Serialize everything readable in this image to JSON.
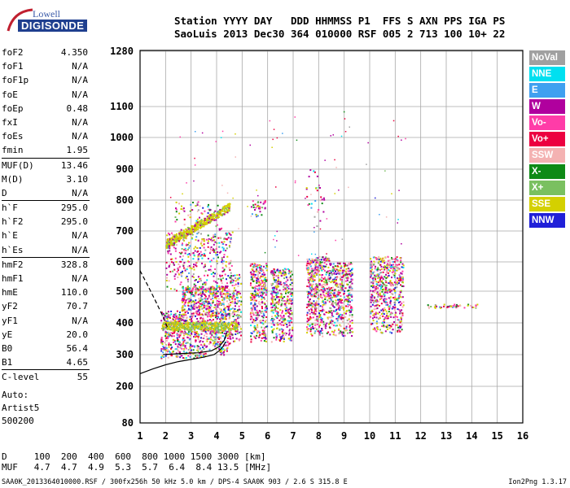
{
  "logo": {
    "line1": "Lowell",
    "line2": "DIGISONDE"
  },
  "header": {
    "labels": "Station YYYY DAY   DDD HHMMSS P1  FFS S AXN PPS IGA PS",
    "values": "SaoLuis 2013 Dec30 364 010000 RSF 005 2 713 100 10+ 22"
  },
  "params_groups": [
    [
      {
        "name": "foF2",
        "value": "4.350"
      },
      {
        "name": "foF1",
        "value": "N/A"
      },
      {
        "name": "foF1p",
        "value": "N/A"
      },
      {
        "name": "foE",
        "value": "N/A"
      },
      {
        "name": "foEp",
        "value": "0.48"
      },
      {
        "name": "fxI",
        "value": "N/A"
      },
      {
        "name": "foEs",
        "value": "N/A"
      },
      {
        "name": "fmin",
        "value": "1.95"
      }
    ],
    [
      {
        "name": "MUF(D)",
        "value": "13.46"
      },
      {
        "name": "M(D)",
        "value": "3.10"
      },
      {
        "name": "D",
        "value": "N/A"
      }
    ],
    [
      {
        "name": "h`F",
        "value": "295.0"
      },
      {
        "name": "h`F2",
        "value": "295.0"
      },
      {
        "name": "h`E",
        "value": "N/A"
      },
      {
        "name": "h`Es",
        "value": "N/A"
      }
    ],
    [
      {
        "name": "hmF2",
        "value": "328.8"
      },
      {
        "name": "hmF1",
        "value": "N/A"
      },
      {
        "name": "hmE",
        "value": "110.0"
      },
      {
        "name": "yF2",
        "value": "70.7"
      },
      {
        "name": "yF1",
        "value": "N/A"
      },
      {
        "name": "yE",
        "value": "20.0"
      },
      {
        "name": "B0",
        "value": "56.4"
      },
      {
        "name": "B1",
        "value": "4.65"
      }
    ],
    [
      {
        "name": "C-level",
        "value": "55"
      }
    ]
  ],
  "auto": {
    "line1": "Auto:",
    "line2": "Artist5",
    "line3": "500200"
  },
  "legend": [
    {
      "label": "NoVal",
      "color": "#a0a0a0"
    },
    {
      "label": "NNE",
      "color": "#00e0f0"
    },
    {
      "label": "E",
      "color": "#3fa0f0"
    },
    {
      "label": "W",
      "color": "#b0009e"
    },
    {
      "label": "Vo-",
      "color": "#ff3ca8"
    },
    {
      "label": "Vo+",
      "color": "#ec0040"
    },
    {
      "label": "SSW",
      "color": "#f4b2b2"
    },
    {
      "label": "X-",
      "color": "#0e8a16"
    },
    {
      "label": "X+",
      "color": "#7ac060"
    },
    {
      "label": "SSE",
      "color": "#d4d000"
    },
    {
      "label": "NNW",
      "color": "#2020d8"
    }
  ],
  "chart_data": {
    "type": "scatter",
    "x_ticks": [
      "1",
      "2",
      "3",
      "4",
      "5",
      "6",
      "7",
      "8",
      "9",
      "10",
      "11",
      "12",
      "13",
      "14",
      "15",
      "16"
    ],
    "y_ticks": [
      "1280",
      "1100",
      "1000",
      "900",
      "800",
      "700",
      "600",
      "500",
      "400",
      "300",
      "200",
      "80"
    ],
    "xlim": [
      1,
      16
    ],
    "ylim": [
      80,
      1280
    ],
    "grid": true,
    "legend_position": "right",
    "clusters": [
      {
        "x": [
          1.8,
          2.6
        ],
        "y": [
          290,
          440
        ],
        "density": 1.0
      },
      {
        "x": [
          2.6,
          3.6
        ],
        "y": [
          290,
          520
        ],
        "density": 1.0
      },
      {
        "x": [
          3.6,
          4.5
        ],
        "y": [
          300,
          520
        ],
        "density": 1.0
      },
      {
        "x": [
          4.5,
          4.95
        ],
        "y": [
          340,
          560
        ],
        "density": 0.7
      },
      {
        "x": [
          5.3,
          5.95
        ],
        "y": [
          340,
          600
        ],
        "density": 0.9
      },
      {
        "x": [
          6.1,
          6.95
        ],
        "y": [
          340,
          580
        ],
        "density": 0.9
      },
      {
        "x": [
          7.5,
          8.4
        ],
        "y": [
          360,
          620
        ],
        "density": 0.9
      },
      {
        "x": [
          8.4,
          9.3
        ],
        "y": [
          360,
          600
        ],
        "density": 0.9
      },
      {
        "x": [
          10.0,
          11.3
        ],
        "y": [
          370,
          620
        ],
        "density": 0.8
      },
      {
        "x": [
          2.0,
          4.6
        ],
        "y": [
          500,
          700
        ],
        "density": 0.35
      },
      {
        "x": [
          2.3,
          4.2
        ],
        "y": [
          700,
          800
        ],
        "density": 0.15
      },
      {
        "x": [
          5.3,
          5.9
        ],
        "y": [
          750,
          800
        ],
        "density": 0.5
      },
      {
        "x": [
          7.5,
          8.2
        ],
        "y": [
          700,
          900
        ],
        "density": 0.1
      }
    ],
    "band_x": [
      2.0,
      4.5
    ],
    "band_y": [
      660,
      780
    ],
    "trace_12_14": {
      "x": [
        12.2,
        14.2
      ],
      "y": 455
    },
    "profile_curve": {
      "x": [
        1.0,
        1.5,
        2.0,
        2.5,
        3.0,
        3.5,
        3.9,
        4.1,
        4.25,
        4.35
      ],
      "y": [
        240,
        255,
        268,
        278,
        285,
        292,
        300,
        312,
        325,
        340
      ]
    },
    "trace_curve": {
      "x": [
        1.9,
        2.3,
        2.8,
        3.3,
        3.8,
        4.1,
        4.3,
        4.4
      ],
      "y": [
        300,
        302,
        304,
        306,
        312,
        325,
        345,
        370
      ]
    },
    "dashed_profile": {
      "x": [
        1.0,
        1.3,
        1.6,
        1.9,
        2.1
      ],
      "y": [
        570,
        520,
        470,
        420,
        380
      ]
    }
  },
  "muf_table": {
    "line1": "D     100  200  400  600  800 1000 1500 3000 [km]",
    "line2": "MUF   4.7  4.7  4.9  5.3  5.7  6.4  8.4 13.5 [MHz]"
  },
  "footer": {
    "left": "SAA0K_2013364010000.RSF / 300fx256h 50 kHz 5.0 km / DPS-4 SAA0K 903 / 2.6 S 315.8 E",
    "right": "Ion2Png 1.3.17"
  }
}
